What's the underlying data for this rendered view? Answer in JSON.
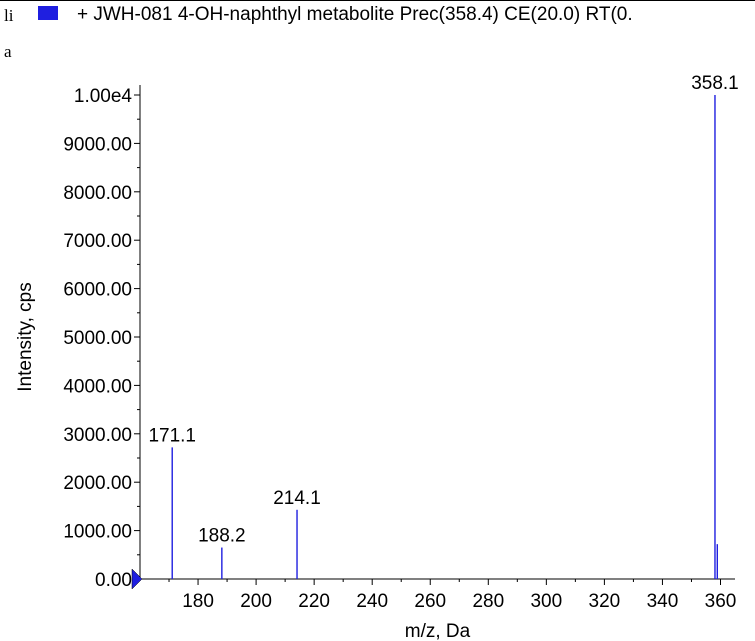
{
  "header": {
    "fragment_top": "li",
    "fragment_bottom": "a",
    "legend_color": "#1f1fe0",
    "title": "+ JWH-081 4-OH-naphthyl metabolite Prec(358.4) CE(20.0) RT(0."
  },
  "chart_data": {
    "type": "bar",
    "xlabel": "m/z, Da",
    "ylabel": "Intensity, cps",
    "xlim": [
      160,
      365
    ],
    "ylim": [
      0,
      10000
    ],
    "xticks": [
      180,
      200,
      220,
      240,
      260,
      280,
      300,
      320,
      340,
      360
    ],
    "xtick_labels": [
      "180",
      "200",
      "220",
      "240",
      "260",
      "280",
      "300",
      "320",
      "340",
      "360"
    ],
    "yticks": [
      0,
      1000,
      2000,
      3000,
      4000,
      5000,
      6000,
      7000,
      8000,
      9000,
      10000
    ],
    "ytick_labels": [
      "0.00",
      "1000.00",
      "2000.00",
      "3000.00",
      "4000.00",
      "5000.00",
      "6000.00",
      "7000.00",
      "8000.00",
      "9000.00",
      "1.00e4"
    ],
    "series_color": "#1f1fe0",
    "peaks": [
      {
        "mz": 171.1,
        "intensity": 2720,
        "label": "171.1"
      },
      {
        "mz": 188.2,
        "intensity": 650,
        "label": "188.2"
      },
      {
        "mz": 214.1,
        "intensity": 1430,
        "label": "214.1"
      },
      {
        "mz": 358.1,
        "intensity": 10000,
        "label": "358.1"
      },
      {
        "mz": 358.9,
        "intensity": 720,
        "label": ""
      }
    ]
  }
}
